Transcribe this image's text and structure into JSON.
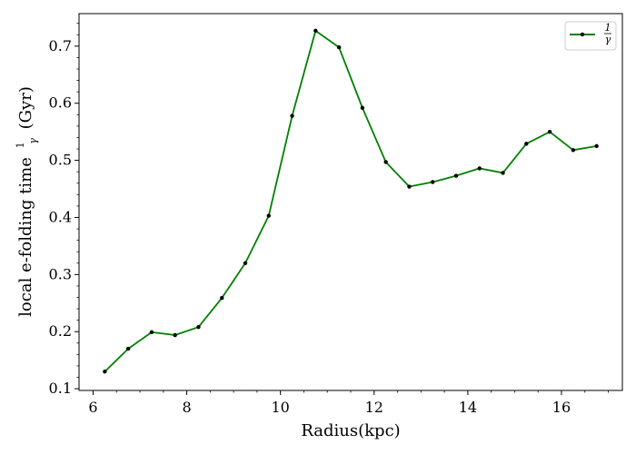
{
  "chart_data": {
    "type": "line",
    "xlabel": "Radius(kpc)",
    "ylabel_prefix": "local e-folding time",
    "ylabel_suffix": "(Gyr)",
    "ylabel_frac_num": "1",
    "ylabel_frac_den": "γ",
    "xlim": [
      5.7,
      17.3
    ],
    "ylim": [
      0.097,
      0.757
    ],
    "x_ticks": [
      6,
      8,
      10,
      12,
      14,
      16
    ],
    "y_ticks": [
      0.1,
      0.2,
      0.3,
      0.4,
      0.5,
      0.6,
      0.7
    ],
    "x_ticks_text": [
      "6",
      "8",
      "10",
      "12",
      "14",
      "16"
    ],
    "y_ticks_text": [
      "0.1",
      "0.2",
      "0.3",
      "0.4",
      "0.5",
      "0.6",
      "0.7"
    ],
    "grid": false,
    "legend_placement": "top-right",
    "series": [
      {
        "name_num": "1",
        "name_den": "γ",
        "color": "#008000",
        "marker_color": "#000000",
        "x": [
          6.25,
          6.75,
          7.25,
          7.75,
          8.25,
          8.75,
          9.25,
          9.75,
          10.25,
          10.75,
          11.25,
          11.75,
          12.25,
          12.75,
          13.25,
          13.75,
          14.25,
          14.75,
          15.25,
          15.75,
          16.25,
          16.75
        ],
        "y": [
          0.13,
          0.17,
          0.199,
          0.194,
          0.208,
          0.259,
          0.32,
          0.403,
          0.578,
          0.727,
          0.698,
          0.592,
          0.497,
          0.454,
          0.462,
          0.473,
          0.486,
          0.478,
          0.529,
          0.55,
          0.518,
          0.525
        ]
      }
    ]
  }
}
